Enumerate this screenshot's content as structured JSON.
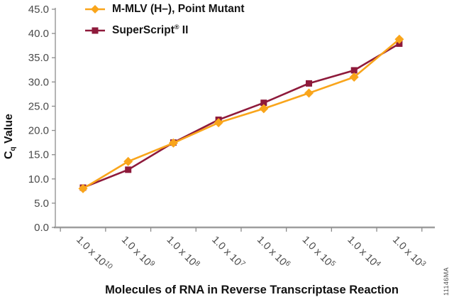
{
  "chart_data": {
    "type": "line",
    "title": "",
    "xlabel": "Molecules of RNA in Reverse Transcriptase Reaction",
    "ylabel": {
      "symbol": "C",
      "subscript": "q",
      "rest": " Value"
    },
    "ylabel_text": "Cq Value",
    "x_tick_prefix": "1.0 x 10",
    "x_tick_exponents": [
      "10",
      "9",
      "8",
      "7",
      "6",
      "5",
      "4",
      "3"
    ],
    "categories": [
      "1.0 x 10^10",
      "1.0 x 10^9",
      "1.0 x 10^8",
      "1.0 x 10^7",
      "1.0 x 10^6",
      "1.0 x 10^5",
      "1.0 x 10^4",
      "1.0 x 10^3"
    ],
    "y_ticks": [
      0,
      5,
      10,
      15,
      20,
      25,
      30,
      35,
      40,
      45
    ],
    "y_tick_labels": [
      "0.0",
      "5.0",
      "10.0",
      "15.0",
      "20.0",
      "25.0",
      "30.0",
      "35.0",
      "40.0",
      "45.0"
    ],
    "ylim": [
      0,
      45
    ],
    "grid": false,
    "legend_position": "top-left",
    "series": [
      {
        "name": "M-MLV (H–), Point Mutant",
        "marker": "diamond",
        "color": "#F9A51B",
        "values": [
          8.0,
          13.6,
          17.4,
          21.6,
          24.5,
          27.7,
          31.0,
          38.8
        ]
      },
      {
        "name": "SuperScript® II",
        "marker": "square",
        "color": "#8E1A3B",
        "values": [
          8.2,
          11.9,
          17.5,
          22.2,
          25.7,
          29.7,
          32.4,
          37.9
        ]
      }
    ],
    "axis_color": "#8C8C8C",
    "baseline_color": "#9E9E9E",
    "tick_label_color": "#4A4A4A"
  },
  "side_label": "11146MA"
}
